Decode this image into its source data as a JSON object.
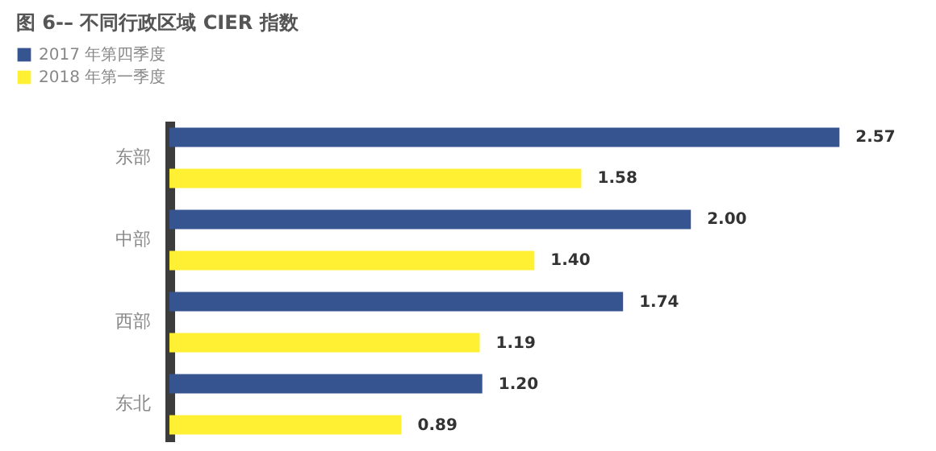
{
  "chart_data": {
    "type": "bar",
    "orientation": "horizontal",
    "title": "图 6-– 不同行政区域 CIER 指数",
    "categories": [
      "东部",
      "中部",
      "西部",
      "东北"
    ],
    "series": [
      {
        "name": "2017 年第四季度",
        "color": "#36548f",
        "values": [
          2.57,
          2.0,
          1.74,
          1.2
        ],
        "value_labels": [
          "2.57",
          "2.00",
          "1.74",
          "1.20"
        ]
      },
      {
        "name": "2018 年第一季度",
        "color": "#fff033",
        "values": [
          1.58,
          1.4,
          1.19,
          0.89
        ],
        "value_labels": [
          "1.58",
          "1.40",
          "1.19",
          "0.89"
        ]
      }
    ],
    "legend": "top left",
    "grid": false
  }
}
